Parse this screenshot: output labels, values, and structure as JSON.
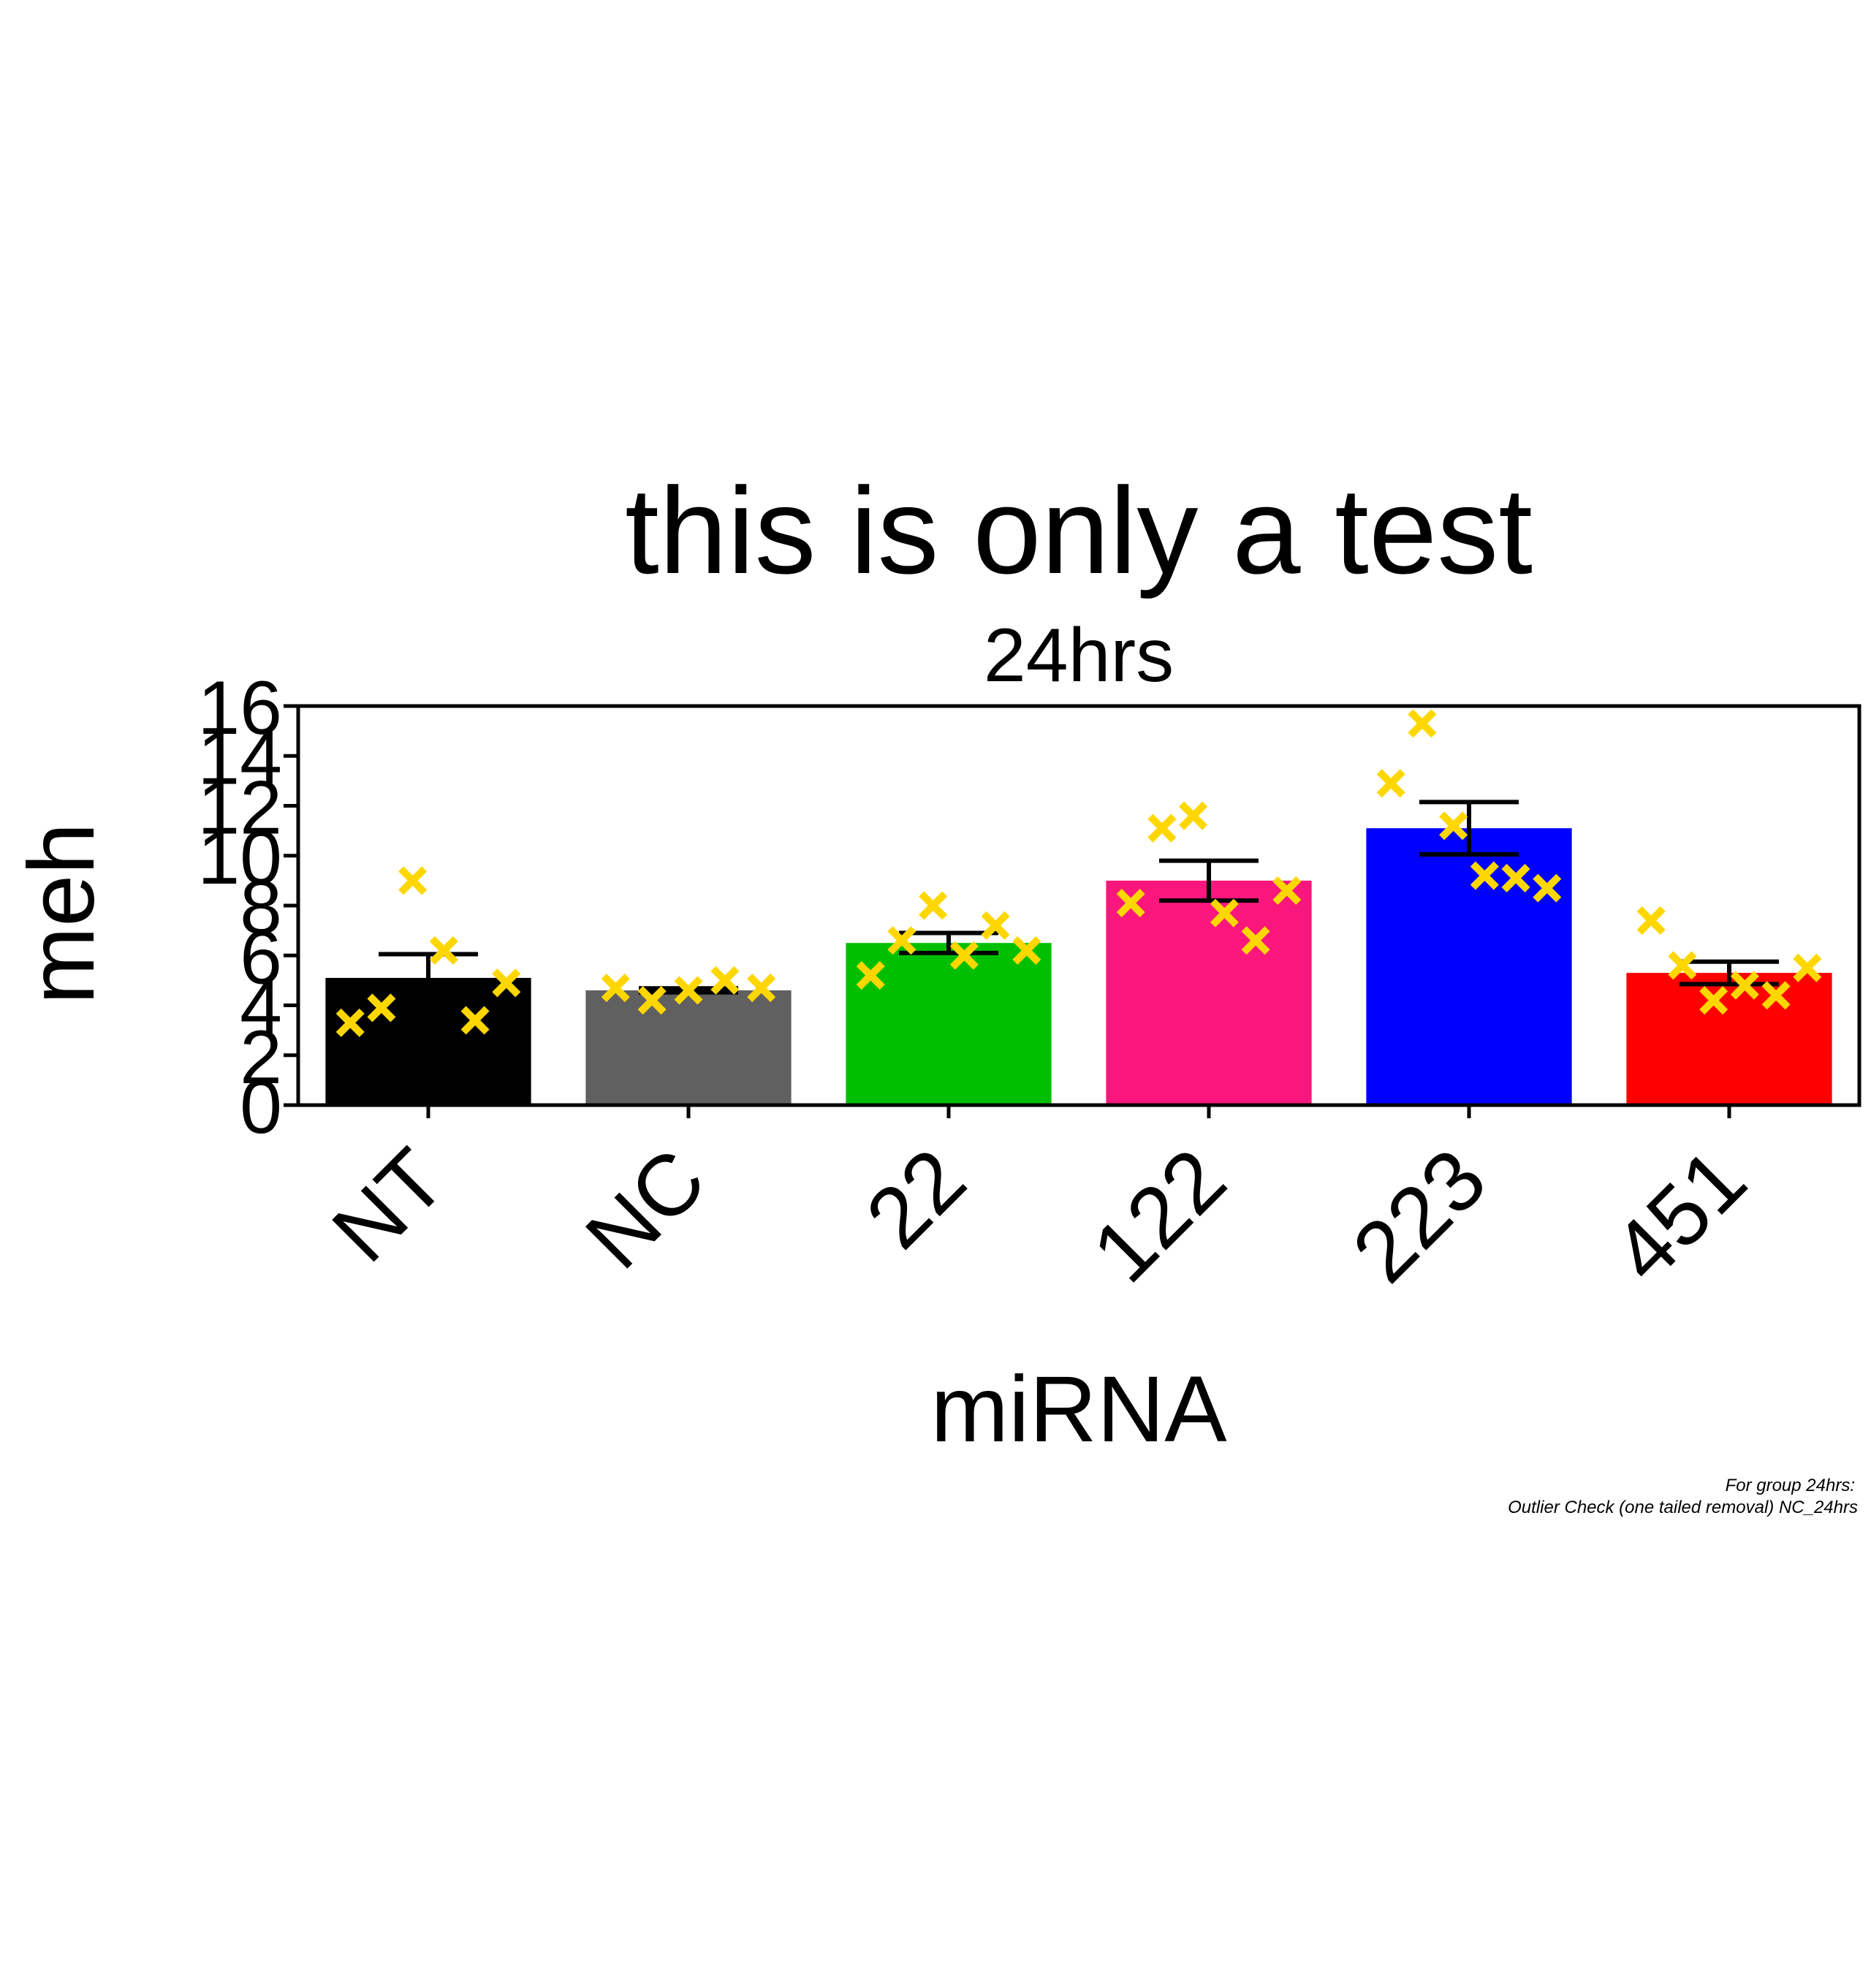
{
  "chart_data": {
    "type": "bar",
    "title": "this is only a test",
    "subtitle": "24hrs",
    "xlabel": "miRNA",
    "ylabel": "meh",
    "ylim": [
      0,
      16
    ],
    "yticks": [
      0,
      2,
      4,
      6,
      8,
      10,
      12,
      14,
      16
    ],
    "categories": [
      "NT",
      "NC",
      "22",
      "122",
      "223",
      "451"
    ],
    "values": [
      5.1,
      4.6,
      6.5,
      9.0,
      11.1,
      5.3
    ],
    "errors": [
      0.95,
      0.08,
      0.4,
      0.8,
      1.05,
      0.45
    ],
    "bar_colors": [
      "#000000",
      "#606060",
      "#00BF00",
      "#FA177D",
      "#0000FF",
      "#FF0000"
    ],
    "point_color": "#FFD700",
    "points": [
      [
        [
          -0.3,
          3.3
        ],
        [
          -0.18,
          3.9
        ],
        [
          -0.06,
          9.0
        ],
        [
          0.06,
          6.2
        ],
        [
          0.18,
          3.4
        ],
        [
          0.3,
          4.9
        ]
      ],
      [
        [
          -0.28,
          4.7
        ],
        [
          -0.14,
          4.2
        ],
        [
          0.0,
          4.6
        ],
        [
          0.14,
          5.0
        ],
        [
          0.28,
          4.7
        ]
      ],
      [
        [
          -0.3,
          5.2
        ],
        [
          -0.18,
          6.6
        ],
        [
          -0.06,
          8.0
        ],
        [
          0.06,
          6.0
        ],
        [
          0.18,
          7.2
        ],
        [
          0.3,
          6.2
        ]
      ],
      [
        [
          -0.3,
          8.1
        ],
        [
          -0.18,
          11.1
        ],
        [
          -0.06,
          11.6
        ],
        [
          0.06,
          7.7
        ],
        [
          0.18,
          6.6
        ],
        [
          0.3,
          8.6
        ]
      ],
      [
        [
          -0.3,
          12.9
        ],
        [
          -0.18,
          15.3
        ],
        [
          -0.06,
          11.2
        ],
        [
          0.06,
          9.2
        ],
        [
          0.18,
          9.1
        ],
        [
          0.3,
          8.7
        ]
      ],
      [
        [
          -0.3,
          7.4
        ],
        [
          -0.18,
          5.6
        ],
        [
          -0.06,
          4.2
        ],
        [
          0.06,
          4.8
        ],
        [
          0.18,
          4.4
        ],
        [
          0.3,
          5.5
        ]
      ]
    ],
    "grid": false,
    "legend": "none"
  },
  "footnote": {
    "line1": "For group 24hrs:",
    "line2": "Outlier Check (one tailed removal) NC_24hrs"
  }
}
